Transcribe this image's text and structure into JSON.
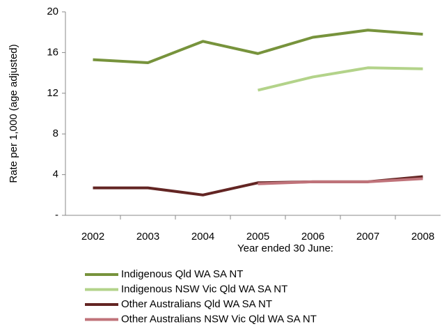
{
  "chart_data": {
    "type": "line",
    "y_label": "Rate per 1,000 (age adjusted)",
    "x_label": "Year ended 30 June:",
    "categories": [
      "2002",
      "2003",
      "2004",
      "2005",
      "2006",
      "2007",
      "2008"
    ],
    "series": [
      {
        "name": "Indigenous Qld WA SA NT",
        "color": "#77933c",
        "values": [
          15.3,
          15.0,
          17.1,
          15.9,
          17.5,
          18.2,
          17.8
        ]
      },
      {
        "name": "Indigenous NSW Vic Qld WA SA NT",
        "color": "#b3d38a",
        "values": [
          null,
          null,
          null,
          12.3,
          13.6,
          14.5,
          14.4
        ]
      },
      {
        "name": "Other Australians Qld WA SA NT",
        "color": "#632523",
        "values": [
          2.7,
          2.7,
          2.0,
          3.2,
          3.3,
          3.3,
          3.8
        ]
      },
      {
        "name": "Other Australians NSW Vic Qld WA SA NT",
        "color": "#c0737a",
        "values": [
          null,
          null,
          null,
          3.1,
          3.3,
          3.3,
          3.6
        ]
      }
    ],
    "ylim": [
      0,
      20
    ],
    "yticks": [
      {
        "value": 0,
        "label": "-"
      },
      4,
      8,
      12,
      16,
      20
    ],
    "grid": false
  }
}
